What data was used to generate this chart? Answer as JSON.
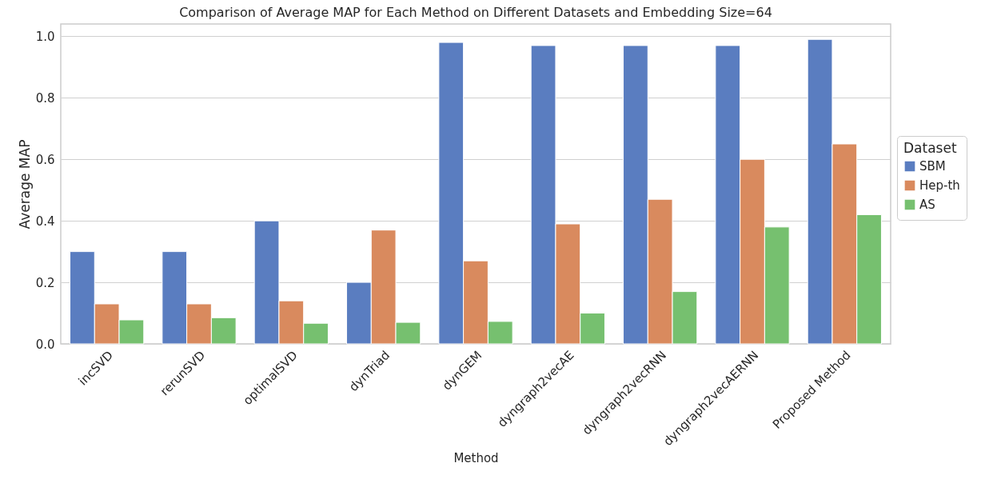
{
  "chart_data": {
    "type": "bar",
    "title": "Comparison of Average MAP for Each Method on Different Datasets and Embedding Size=64",
    "xlabel": "Method",
    "ylabel": "Average MAP",
    "legend_title": "Dataset",
    "categories": [
      "incSVD",
      "rerunSVD",
      "optimalSVD",
      "dynTriad",
      "dynGEM",
      "dyngraph2vecAE",
      "dyngraph2vecRNN",
      "dyngraph2vecAERNN",
      "Proposed Method"
    ],
    "series": [
      {
        "name": "SBM",
        "color": "#5a7dc0",
        "values": [
          0.3,
          0.3,
          0.4,
          0.2,
          0.98,
          0.97,
          0.97,
          0.97,
          0.99
        ]
      },
      {
        "name": "Hep-th",
        "color": "#d98a5e",
        "values": [
          0.13,
          0.13,
          0.14,
          0.37,
          0.27,
          0.39,
          0.47,
          0.6,
          0.65
        ]
      },
      {
        "name": "AS",
        "color": "#76c06f",
        "values": [
          0.078,
          0.085,
          0.067,
          0.07,
          0.073,
          0.1,
          0.17,
          0.38,
          0.42
        ]
      }
    ],
    "ylim": [
      0,
      1.04
    ],
    "yticks": [
      {
        "value": 0,
        "label": "0.0"
      },
      0.2,
      0.4,
      0.6,
      0.8,
      {
        "value": 1,
        "label": "1.0"
      }
    ],
    "grid": "y",
    "legend": "right"
  }
}
